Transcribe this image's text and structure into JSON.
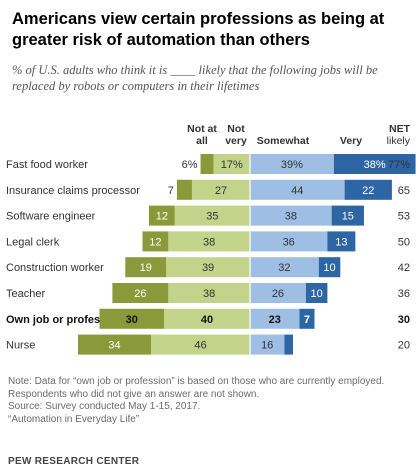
{
  "title": "Americans view certain professions as being at greater risk of automation than others",
  "subtitle": "% of U.S. adults who think it is ____ likely that the following jobs will be replaced by robots or computers in their lifetimes",
  "chart_data": {
    "type": "bar",
    "stacked": "diverging",
    "categories": [
      "Fast food worker",
      "Insurance claims processor",
      "Software engineer",
      "Legal clerk",
      "Construction worker",
      "Teacher",
      "Own job or profession",
      "Nurse"
    ],
    "bold_categories": [
      "Own job or profession"
    ],
    "series": [
      {
        "name": "Not at all",
        "side": "left",
        "color": "#8a9a3b",
        "values": [
          6,
          7,
          12,
          12,
          19,
          26,
          30,
          34
        ],
        "labels": [
          "6%",
          "7",
          "12",
          "12",
          "19",
          "26",
          "30",
          "34"
        ]
      },
      {
        "name": "Not very",
        "side": "left",
        "color": "#c3d38a",
        "values": [
          17,
          27,
          35,
          38,
          39,
          38,
          40,
          46
        ],
        "labels": [
          "17%",
          "27",
          "35",
          "38",
          "39",
          "38",
          "40",
          "46"
        ]
      },
      {
        "name": "Somewhat",
        "side": "right",
        "color": "#9ebee4",
        "values": [
          39,
          44,
          38,
          36,
          32,
          26,
          23,
          16
        ],
        "labels": [
          "39%",
          "44",
          "38",
          "36",
          "32",
          "26",
          "23",
          "16"
        ]
      },
      {
        "name": "Very",
        "side": "right",
        "color": "#2e65a4",
        "values": [
          38,
          22,
          15,
          13,
          10,
          10,
          7,
          4
        ],
        "labels": [
          "38%",
          "22",
          "15",
          "13",
          "10",
          "10",
          "7",
          "4"
        ]
      }
    ],
    "net_likely": {
      "header": "NET likely",
      "values": [
        "77%",
        "65",
        "53",
        "50",
        "42",
        "36",
        "30",
        "20"
      ]
    }
  },
  "footer": {
    "note": "Note: Data for “own job or profession” is based on those who are currently employed. Respondents who did not give an answer are not shown.",
    "source": "Source: Survey conducted May 1-15, 2017.",
    "report": "“Automation in Everyday Life”",
    "brand": "PEW RESEARCH CENTER"
  }
}
